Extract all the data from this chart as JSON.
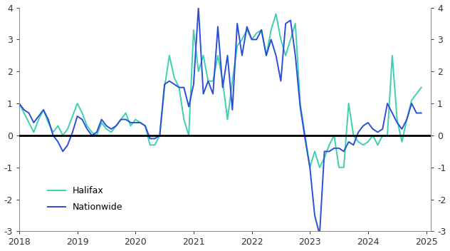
{
  "halifax_color": "#3ecfb0",
  "nationwide_color": "#2a4fd6",
  "zero_line_color": "#000000",
  "background_color": "#ffffff",
  "ylim": [
    -3,
    4
  ],
  "yticks": [
    -3,
    -2,
    -1,
    0,
    1,
    2,
    3,
    4
  ],
  "xlim_start": 2018.0,
  "xlim_end": 2025.08,
  "xticks": [
    2018,
    2019,
    2020,
    2021,
    2022,
    2023,
    2024,
    2025
  ],
  "halifax": {
    "x": [
      2018.0,
      2018.083,
      2018.167,
      2018.25,
      2018.333,
      2018.417,
      2018.5,
      2018.583,
      2018.667,
      2018.75,
      2018.833,
      2018.917,
      2019.0,
      2019.083,
      2019.167,
      2019.25,
      2019.333,
      2019.417,
      2019.5,
      2019.583,
      2019.667,
      2019.75,
      2019.833,
      2019.917,
      2020.0,
      2020.083,
      2020.167,
      2020.25,
      2020.333,
      2020.417,
      2020.5,
      2020.583,
      2020.667,
      2020.75,
      2020.833,
      2020.917,
      2021.0,
      2021.083,
      2021.167,
      2021.25,
      2021.333,
      2021.417,
      2021.5,
      2021.583,
      2021.667,
      2021.75,
      2021.833,
      2021.917,
      2022.0,
      2022.083,
      2022.167,
      2022.25,
      2022.333,
      2022.417,
      2022.5,
      2022.583,
      2022.667,
      2022.75,
      2022.833,
      2022.917,
      2023.0,
      2023.083,
      2023.167,
      2023.25,
      2023.333,
      2023.417,
      2023.5,
      2023.583,
      2023.667,
      2023.75,
      2023.833,
      2023.917,
      2024.0,
      2024.083,
      2024.167,
      2024.25,
      2024.333,
      2024.417,
      2024.5,
      2024.583,
      2024.667,
      2024.75,
      2024.833,
      2024.917
    ],
    "y": [
      1.0,
      0.7,
      0.4,
      0.1,
      0.5,
      0.8,
      0.4,
      0.1,
      0.3,
      0.0,
      0.2,
      0.6,
      1.0,
      0.7,
      0.3,
      0.1,
      0.0,
      0.4,
      0.2,
      0.1,
      0.3,
      0.5,
      0.7,
      0.3,
      0.5,
      0.4,
      0.3,
      -0.3,
      -0.3,
      0.0,
      1.5,
      2.5,
      1.8,
      1.5,
      0.5,
      0.0,
      3.3,
      2.0,
      2.5,
      1.7,
      1.7,
      2.5,
      1.7,
      0.5,
      1.7,
      2.8,
      3.0,
      3.3,
      3.0,
      3.2,
      3.3,
      2.5,
      3.3,
      3.8,
      3.0,
      2.5,
      3.0,
      3.5,
      1.0,
      0.0,
      -1.0,
      -0.5,
      -1.0,
      -0.7,
      -0.3,
      0.0,
      -1.0,
      -1.0,
      1.0,
      0.0,
      -0.2,
      -0.3,
      -0.2,
      0.0,
      -0.3,
      0.0,
      0.0,
      2.5,
      0.5,
      -0.2,
      0.5,
      1.1,
      1.3,
      1.5
    ]
  },
  "nationwide": {
    "x": [
      2018.0,
      2018.083,
      2018.167,
      2018.25,
      2018.333,
      2018.417,
      2018.5,
      2018.583,
      2018.667,
      2018.75,
      2018.833,
      2018.917,
      2019.0,
      2019.083,
      2019.167,
      2019.25,
      2019.333,
      2019.417,
      2019.5,
      2019.583,
      2019.667,
      2019.75,
      2019.833,
      2019.917,
      2020.0,
      2020.083,
      2020.167,
      2020.25,
      2020.333,
      2020.417,
      2020.5,
      2020.583,
      2020.667,
      2020.75,
      2020.833,
      2020.917,
      2021.0,
      2021.083,
      2021.167,
      2021.25,
      2021.333,
      2021.417,
      2021.5,
      2021.583,
      2021.667,
      2021.75,
      2021.833,
      2021.917,
      2022.0,
      2022.083,
      2022.167,
      2022.25,
      2022.333,
      2022.417,
      2022.5,
      2022.583,
      2022.667,
      2022.75,
      2022.833,
      2022.917,
      2023.0,
      2023.083,
      2023.167,
      2023.25,
      2023.333,
      2023.417,
      2023.5,
      2023.583,
      2023.667,
      2023.75,
      2023.833,
      2023.917,
      2024.0,
      2024.083,
      2024.167,
      2024.25,
      2024.333,
      2024.417,
      2024.5,
      2024.583,
      2024.667,
      2024.75,
      2024.833,
      2024.917
    ],
    "y": [
      1.0,
      0.8,
      0.7,
      0.4,
      0.6,
      0.8,
      0.5,
      0.0,
      -0.2,
      -0.5,
      -0.3,
      0.1,
      0.6,
      0.5,
      0.2,
      0.0,
      0.1,
      0.5,
      0.3,
      0.2,
      0.3,
      0.5,
      0.5,
      0.4,
      0.4,
      0.4,
      0.3,
      -0.1,
      -0.1,
      0.0,
      1.6,
      1.7,
      1.6,
      1.5,
      1.5,
      0.9,
      1.6,
      4.0,
      1.3,
      1.7,
      1.3,
      3.4,
      1.5,
      2.5,
      0.8,
      3.5,
      2.5,
      3.4,
      3.0,
      3.0,
      3.3,
      2.5,
      3.0,
      2.5,
      1.7,
      3.5,
      3.6,
      2.5,
      0.9,
      -0.1,
      -1.0,
      -2.5,
      -3.1,
      -0.5,
      -0.5,
      -0.4,
      -0.4,
      -0.5,
      -0.2,
      -0.3,
      0.1,
      0.3,
      0.4,
      0.2,
      0.1,
      0.2,
      1.0,
      0.7,
      0.4,
      0.2,
      0.5,
      1.0,
      0.7,
      0.7
    ]
  }
}
